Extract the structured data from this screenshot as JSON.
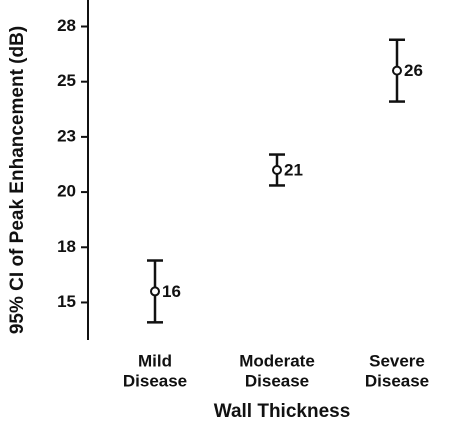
{
  "chart_data": {
    "type": "errorbar",
    "x_label": "Wall Thickness",
    "y_label": "95% CI of Peak Enhancement (dB)",
    "categories": [
      [
        "Mild",
        "Disease"
      ],
      [
        "Moderate",
        "Disease"
      ],
      [
        "Severe",
        "Disease"
      ]
    ],
    "values": [
      15.5,
      21.0,
      25.5
    ],
    "value_labels": [
      "16",
      "21",
      "26"
    ],
    "errors": [
      1.4,
      0.7,
      1.4
    ],
    "color": "#111111",
    "ylim": [
      13.3,
      28.7
    ],
    "yticks": [
      15,
      {
        "value": 17.5,
        "label": "18"
      },
      20,
      {
        "value": 22.5,
        "label": "23"
      },
      25,
      {
        "value": 27.5,
        "label": "28"
      }
    ]
  }
}
